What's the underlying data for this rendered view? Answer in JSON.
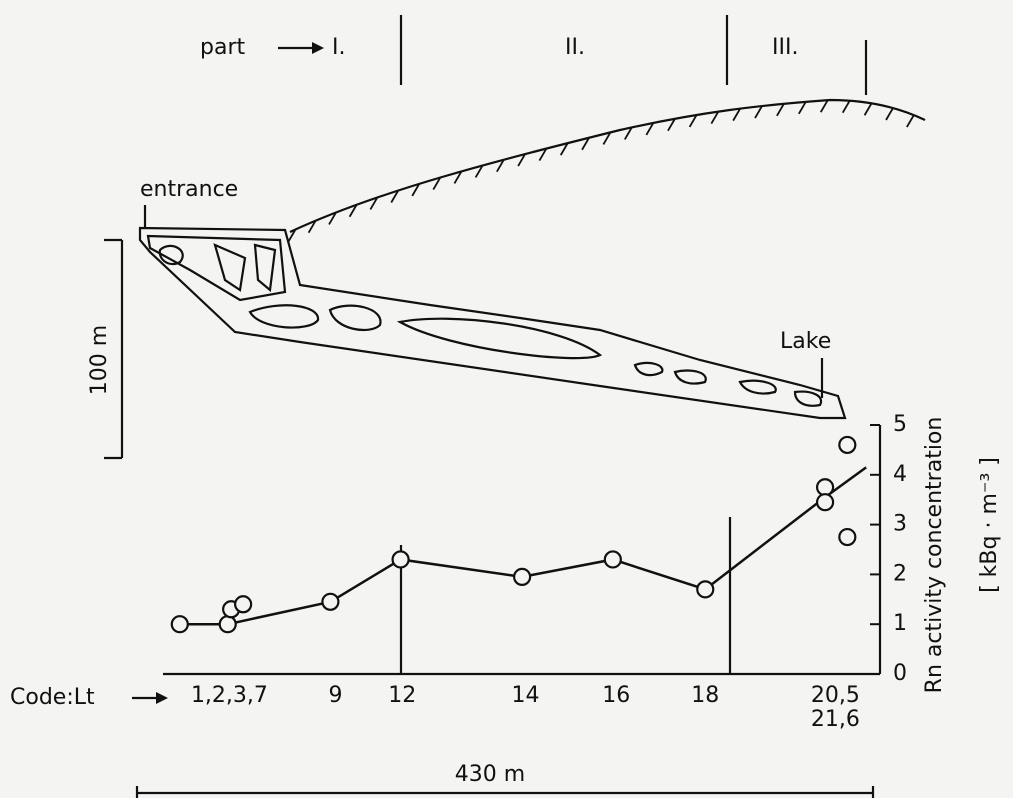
{
  "chart_data": {
    "type": "line",
    "parts_label": "part",
    "parts": [
      "I.",
      "II.",
      "III."
    ],
    "annotations": [
      "entrance",
      "Lake"
    ],
    "scale_labels": [
      "100 m",
      "430 m"
    ],
    "code_label": "Code:Lt",
    "ylabel": "Rn activity concentration",
    "yunit": "[ kBq · m⁻³ ]",
    "xlim": [
      0,
      430
    ],
    "xticks": [
      {
        "value": 54,
        "label": "1,2,3,7"
      },
      {
        "value": 116,
        "label": "9"
      },
      {
        "value": 155,
        "label": "12"
      },
      {
        "value": 227,
        "label": "14"
      },
      {
        "value": 280,
        "label": "16"
      },
      {
        "value": 332,
        "label": "18"
      },
      {
        "value": 408,
        "label": "20,5\n21,6"
      }
    ],
    "ylim": [
      0,
      5
    ],
    "yticks": [
      0,
      1,
      2,
      3,
      4,
      5
    ],
    "series": [
      {
        "type": "line",
        "color": "#111111",
        "x": [
          25,
          53,
          113,
          154,
          225,
          278,
          332,
          402,
          426
        ],
        "values": [
          1.0,
          1.0,
          1.45,
          2.3,
          1.95,
          2.3,
          1.7,
          3.55,
          4.15
        ]
      },
      {
        "type": "scatter",
        "color": "#111111",
        "x": [
          25,
          53,
          55,
          62,
          113,
          154,
          225,
          278,
          332,
          402,
          402,
          415,
          415
        ],
        "values": [
          1.0,
          1.0,
          1.3,
          1.4,
          1.45,
          2.3,
          1.95,
          2.3,
          1.7,
          3.75,
          3.45,
          2.75,
          4.6
        ]
      }
    ]
  }
}
